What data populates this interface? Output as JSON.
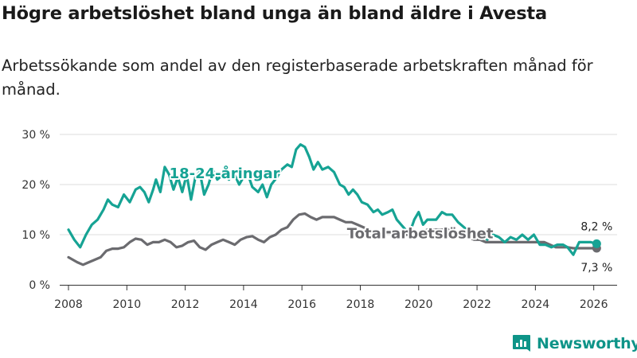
{
  "header": {
    "title": "Högre arbetslöshet bland unga än bland äldre i Avesta",
    "subtitle": "Arbetssökande som andel av den registerbaserade arbetskraften månad för månad."
  },
  "brand": {
    "name": "Newsworthy",
    "color": "#0e9488",
    "icon": "newsworthy-logo-icon"
  },
  "chart_data": {
    "type": "line",
    "title": "Högre arbetslöshet bland unga än bland äldre i Avesta",
    "subtitle": "Arbetssökande som andel av den registerbaserade arbetskraften månad för månad.",
    "xlabel": "",
    "ylabel": "",
    "xlim": [
      2007.7,
      2026.8
    ],
    "ylim": [
      0,
      30
    ],
    "x_ticks": [
      2008,
      2010,
      2012,
      2014,
      2016,
      2018,
      2020,
      2022,
      2024,
      2026
    ],
    "x_tick_labels": [
      "2008",
      "2010",
      "2012",
      "2014",
      "2016",
      "2018",
      "2020",
      "2022",
      "2024",
      "2026"
    ],
    "y_ticks": [
      0,
      10,
      20,
      30
    ],
    "y_tick_labels": [
      "0 %",
      "10 %",
      "20 %",
      "30 %"
    ],
    "grid": "horizontal",
    "series": [
      {
        "name": "18-24-åringar",
        "label": "18-24-åringar",
        "color": "#16a394",
        "end_label": "8,2 %",
        "points": [
          [
            2008.0,
            11
          ],
          [
            2008.2,
            9
          ],
          [
            2008.4,
            7.5
          ],
          [
            2008.6,
            10
          ],
          [
            2008.8,
            12
          ],
          [
            2009.0,
            13
          ],
          [
            2009.2,
            15
          ],
          [
            2009.35,
            17
          ],
          [
            2009.5,
            16
          ],
          [
            2009.7,
            15.5
          ],
          [
            2009.9,
            18
          ],
          [
            2010.1,
            16.5
          ],
          [
            2010.3,
            19
          ],
          [
            2010.45,
            19.5
          ],
          [
            2010.6,
            18.5
          ],
          [
            2010.75,
            16.5
          ],
          [
            2010.9,
            19
          ],
          [
            2011.0,
            21
          ],
          [
            2011.15,
            18.5
          ],
          [
            2011.3,
            23.5
          ],
          [
            2011.45,
            22
          ],
          [
            2011.6,
            19
          ],
          [
            2011.75,
            21.5
          ],
          [
            2011.9,
            18.5
          ],
          [
            2012.05,
            22
          ],
          [
            2012.2,
            17
          ],
          [
            2012.35,
            21.5
          ],
          [
            2012.5,
            22.5
          ],
          [
            2012.65,
            18
          ],
          [
            2012.8,
            20
          ],
          [
            2012.95,
            23
          ],
          [
            2013.1,
            21
          ],
          [
            2013.3,
            22
          ],
          [
            2013.5,
            21
          ],
          [
            2013.65,
            22.5
          ],
          [
            2013.85,
            20
          ],
          [
            2014.0,
            21.5
          ],
          [
            2014.15,
            22
          ],
          [
            2014.3,
            19.5
          ],
          [
            2014.5,
            18.5
          ],
          [
            2014.65,
            20
          ],
          [
            2014.8,
            17.5
          ],
          [
            2014.95,
            20
          ],
          [
            2015.15,
            21.5
          ],
          [
            2015.3,
            23
          ],
          [
            2015.5,
            24
          ],
          [
            2015.65,
            23.5
          ],
          [
            2015.8,
            27
          ],
          [
            2015.95,
            28
          ],
          [
            2016.1,
            27.5
          ],
          [
            2016.25,
            25.5
          ],
          [
            2016.4,
            23
          ],
          [
            2016.55,
            24.5
          ],
          [
            2016.7,
            23
          ],
          [
            2016.9,
            23.5
          ],
          [
            2017.1,
            22.5
          ],
          [
            2017.3,
            20
          ],
          [
            2017.45,
            19.5
          ],
          [
            2017.6,
            18
          ],
          [
            2017.75,
            19
          ],
          [
            2017.9,
            18
          ],
          [
            2018.05,
            16.5
          ],
          [
            2018.25,
            16
          ],
          [
            2018.45,
            14.5
          ],
          [
            2018.6,
            15
          ],
          [
            2018.75,
            14
          ],
          [
            2018.95,
            14.5
          ],
          [
            2019.1,
            15
          ],
          [
            2019.25,
            13
          ],
          [
            2019.4,
            12
          ],
          [
            2019.55,
            11
          ],
          [
            2019.7,
            10.5
          ],
          [
            2019.85,
            13
          ],
          [
            2020.0,
            14.5
          ],
          [
            2020.15,
            12
          ],
          [
            2020.3,
            13
          ],
          [
            2020.45,
            13
          ],
          [
            2020.6,
            13
          ],
          [
            2020.8,
            14.5
          ],
          [
            2020.95,
            14
          ],
          [
            2021.15,
            14
          ],
          [
            2021.35,
            12.5
          ],
          [
            2021.55,
            11.5
          ],
          [
            2021.75,
            10.5
          ],
          [
            2021.95,
            10
          ],
          [
            2022.15,
            10
          ],
          [
            2022.35,
            9
          ],
          [
            2022.55,
            10
          ],
          [
            2022.75,
            9.5
          ],
          [
            2022.95,
            8.5
          ],
          [
            2023.15,
            9.5
          ],
          [
            2023.35,
            9
          ],
          [
            2023.55,
            10
          ],
          [
            2023.75,
            9
          ],
          [
            2023.95,
            10
          ],
          [
            2024.15,
            8
          ],
          [
            2024.35,
            8
          ],
          [
            2024.55,
            7.5
          ],
          [
            2024.75,
            8
          ],
          [
            2024.95,
            8
          ],
          [
            2025.1,
            7.5
          ],
          [
            2025.3,
            6
          ],
          [
            2025.5,
            8.5
          ],
          [
            2025.7,
            8.5
          ],
          [
            2025.9,
            8.5
          ],
          [
            2026.1,
            8.2
          ]
        ]
      },
      {
        "name": "Total arbetslöshet",
        "label": "Total arbetslöshet",
        "color": "#6b6b6f",
        "end_label": "7,3 %",
        "points": [
          [
            2008.0,
            5.5
          ],
          [
            2008.15,
            5
          ],
          [
            2008.3,
            4.5
          ],
          [
            2008.5,
            4
          ],
          [
            2008.7,
            4.5
          ],
          [
            2008.9,
            5
          ],
          [
            2009.1,
            5.5
          ],
          [
            2009.3,
            6.8
          ],
          [
            2009.5,
            7.2
          ],
          [
            2009.7,
            7.2
          ],
          [
            2009.9,
            7.5
          ],
          [
            2010.1,
            8.5
          ],
          [
            2010.3,
            9.2
          ],
          [
            2010.5,
            9
          ],
          [
            2010.7,
            8
          ],
          [
            2010.9,
            8.5
          ],
          [
            2011.1,
            8.5
          ],
          [
            2011.3,
            9
          ],
          [
            2011.5,
            8.5
          ],
          [
            2011.7,
            7.5
          ],
          [
            2011.9,
            7.8
          ],
          [
            2012.1,
            8.5
          ],
          [
            2012.3,
            8.8
          ],
          [
            2012.5,
            7.5
          ],
          [
            2012.7,
            7
          ],
          [
            2012.9,
            8
          ],
          [
            2013.1,
            8.5
          ],
          [
            2013.3,
            9
          ],
          [
            2013.5,
            8.5
          ],
          [
            2013.7,
            8
          ],
          [
            2013.9,
            9
          ],
          [
            2014.1,
            9.5
          ],
          [
            2014.3,
            9.7
          ],
          [
            2014.5,
            9
          ],
          [
            2014.7,
            8.5
          ],
          [
            2014.9,
            9.5
          ],
          [
            2015.1,
            10
          ],
          [
            2015.3,
            11
          ],
          [
            2015.5,
            11.5
          ],
          [
            2015.7,
            13
          ],
          [
            2015.9,
            14
          ],
          [
            2016.1,
            14.2
          ],
          [
            2016.3,
            13.5
          ],
          [
            2016.5,
            13
          ],
          [
            2016.7,
            13.5
          ],
          [
            2016.9,
            13.5
          ],
          [
            2017.1,
            13.5
          ],
          [
            2017.3,
            13
          ],
          [
            2017.5,
            12.5
          ],
          [
            2017.7,
            12.5
          ],
          [
            2017.9,
            12
          ],
          [
            2018.1,
            11.5
          ],
          [
            2018.3,
            11
          ],
          [
            2018.5,
            10.5
          ],
          [
            2018.7,
            10.5
          ],
          [
            2018.9,
            10.5
          ],
          [
            2019.1,
            10.5
          ],
          [
            2019.3,
            10
          ],
          [
            2019.5,
            10
          ],
          [
            2019.7,
            10
          ],
          [
            2019.9,
            10
          ],
          [
            2020.1,
            10.5
          ],
          [
            2020.3,
            11
          ],
          [
            2020.5,
            11
          ],
          [
            2020.7,
            11
          ],
          [
            2020.9,
            11
          ],
          [
            2021.1,
            11
          ],
          [
            2021.3,
            10.5
          ],
          [
            2021.5,
            10
          ],
          [
            2021.7,
            9.5
          ],
          [
            2021.9,
            9
          ],
          [
            2022.1,
            9
          ],
          [
            2022.3,
            8.5
          ],
          [
            2022.5,
            8.5
          ],
          [
            2022.7,
            8.5
          ],
          [
            2022.9,
            8.5
          ],
          [
            2023.1,
            8.5
          ],
          [
            2023.3,
            8.5
          ],
          [
            2023.5,
            8.5
          ],
          [
            2023.7,
            8.5
          ],
          [
            2023.9,
            8.5
          ],
          [
            2024.1,
            8.5
          ],
          [
            2024.3,
            8.5
          ],
          [
            2024.5,
            8
          ],
          [
            2024.7,
            7.5
          ],
          [
            2024.9,
            7.5
          ],
          [
            2025.1,
            7.5
          ],
          [
            2025.3,
            7.3
          ],
          [
            2025.5,
            7.3
          ],
          [
            2025.7,
            7.3
          ],
          [
            2025.9,
            7.3
          ],
          [
            2026.1,
            7.3
          ]
        ]
      }
    ]
  }
}
